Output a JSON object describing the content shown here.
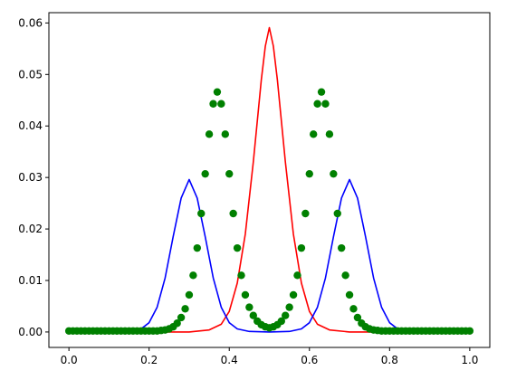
{
  "chart_data": {
    "type": "line",
    "title": "",
    "xlabel": "",
    "ylabel": "",
    "xlim": [
      -0.05,
      1.05
    ],
    "ylim": [
      -0.003,
      0.062
    ],
    "x_ticks": [
      0.0,
      0.2,
      0.4,
      0.6,
      0.8,
      1.0
    ],
    "x_tick_labels": [
      "0.0",
      "0.2",
      "0.4",
      "0.6",
      "0.8",
      "1.0"
    ],
    "y_ticks": [
      0.0,
      0.01,
      0.02,
      0.03,
      0.04,
      0.05,
      0.06
    ],
    "y_tick_labels": [
      "0.00",
      "0.01",
      "0.02",
      "0.03",
      "0.04",
      "0.05",
      "0.06"
    ],
    "grid": false,
    "legend": "none",
    "series": [
      {
        "kind": "line",
        "color": "#ff0000",
        "x": [
          0.0,
          0.3,
          0.35,
          0.38,
          0.4,
          0.42,
          0.44,
          0.46,
          0.48,
          0.49,
          0.5,
          0.51,
          0.52,
          0.54,
          0.56,
          0.58,
          0.6,
          0.62,
          0.65,
          0.7,
          1.0
        ],
        "y": [
          0.0,
          0.0,
          0.0004,
          0.0015,
          0.004,
          0.0095,
          0.019,
          0.033,
          0.049,
          0.0555,
          0.0591,
          0.0555,
          0.049,
          0.033,
          0.019,
          0.0095,
          0.004,
          0.0015,
          0.0004,
          0.0,
          0.0
        ]
      },
      {
        "kind": "line",
        "color": "#0000ff",
        "x": [
          0.0,
          0.1,
          0.15,
          0.18,
          0.2,
          0.22,
          0.24,
          0.26,
          0.28,
          0.3,
          0.32,
          0.34,
          0.36,
          0.38,
          0.4,
          0.42,
          0.45,
          0.5,
          0.55,
          0.58,
          0.6,
          0.62,
          0.64,
          0.66,
          0.68,
          0.7,
          0.72,
          0.74,
          0.76,
          0.78,
          0.8,
          0.82,
          0.85,
          0.9,
          1.0
        ],
        "y": [
          0.0,
          0.0,
          0.0001,
          0.0006,
          0.0018,
          0.0048,
          0.0105,
          0.0185,
          0.026,
          0.0296,
          0.026,
          0.0185,
          0.0105,
          0.0048,
          0.0018,
          0.0006,
          0.0001,
          0.0,
          0.0001,
          0.0006,
          0.0018,
          0.0048,
          0.0105,
          0.0185,
          0.026,
          0.0296,
          0.026,
          0.0185,
          0.0105,
          0.0048,
          0.0018,
          0.0006,
          0.0001,
          0.0,
          0.0
        ]
      },
      {
        "kind": "scatter",
        "color": "#008000",
        "x": [
          0.0,
          0.01,
          0.02,
          0.03,
          0.04,
          0.05,
          0.06,
          0.07,
          0.08,
          0.09,
          0.1,
          0.11,
          0.12,
          0.13,
          0.14,
          0.15,
          0.16,
          0.17,
          0.18,
          0.19,
          0.2,
          0.21,
          0.22,
          0.23,
          0.24,
          0.25,
          0.26,
          0.27,
          0.28,
          0.29,
          0.3,
          0.31,
          0.32,
          0.33,
          0.34,
          0.35,
          0.36,
          0.37,
          0.38,
          0.39,
          0.4,
          0.41,
          0.42,
          0.43,
          0.44,
          0.45,
          0.46,
          0.47,
          0.48,
          0.49,
          0.5,
          0.51,
          0.52,
          0.53,
          0.54,
          0.55,
          0.56,
          0.57,
          0.58,
          0.59,
          0.6,
          0.61,
          0.62,
          0.63,
          0.64,
          0.65,
          0.66,
          0.67,
          0.68,
          0.69,
          0.7,
          0.71,
          0.72,
          0.73,
          0.74,
          0.75,
          0.76,
          0.77,
          0.78,
          0.79,
          0.8,
          0.81,
          0.82,
          0.83,
          0.84,
          0.85,
          0.86,
          0.87,
          0.88,
          0.89,
          0.9,
          0.91,
          0.92,
          0.93,
          0.94,
          0.95,
          0.96,
          0.97,
          0.98,
          0.99,
          1.0
        ],
        "y": [
          0.0002,
          0.0002,
          0.0002,
          0.0002,
          0.0002,
          0.0002,
          0.0002,
          0.0002,
          0.0002,
          0.0002,
          0.0002,
          0.0002,
          0.0002,
          0.0002,
          0.0002,
          0.0002,
          0.0002,
          0.0002,
          0.0002,
          0.0002,
          0.0002,
          0.0002,
          0.0002,
          0.0003,
          0.0004,
          0.0006,
          0.001,
          0.0017,
          0.0028,
          0.0045,
          0.0072,
          0.011,
          0.0163,
          0.023,
          0.0307,
          0.0384,
          0.0443,
          0.0466,
          0.0443,
          0.0384,
          0.0307,
          0.023,
          0.0163,
          0.011,
          0.0072,
          0.0048,
          0.0032,
          0.0021,
          0.0014,
          0.001,
          0.0008,
          0.001,
          0.0014,
          0.0021,
          0.0032,
          0.0048,
          0.0072,
          0.011,
          0.0163,
          0.023,
          0.0307,
          0.0384,
          0.0443,
          0.0466,
          0.0443,
          0.0384,
          0.0307,
          0.023,
          0.0163,
          0.011,
          0.0072,
          0.0045,
          0.0028,
          0.0017,
          0.001,
          0.0006,
          0.0004,
          0.0003,
          0.0002,
          0.0002,
          0.0002,
          0.0002,
          0.0002,
          0.0002,
          0.0002,
          0.0002,
          0.0002,
          0.0002,
          0.0002,
          0.0002,
          0.0002,
          0.0002,
          0.0002,
          0.0002,
          0.0002,
          0.0002,
          0.0002,
          0.0002,
          0.0002,
          0.0002,
          0.0002
        ]
      }
    ]
  }
}
